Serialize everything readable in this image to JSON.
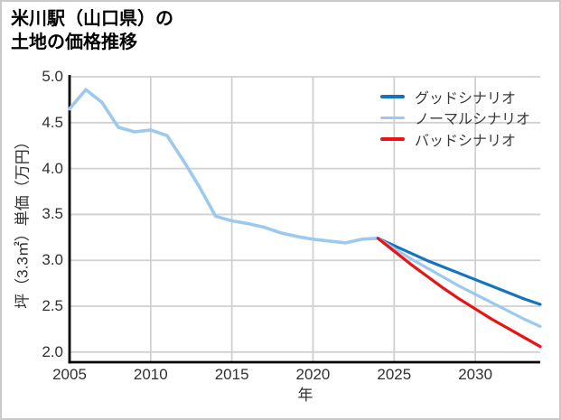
{
  "header": {
    "title_line1": "米川駅（山口県）の",
    "title_line2": "土地の価格推移"
  },
  "chart_data": {
    "type": "line",
    "title": "米川駅（山口県）の土地の価格推移",
    "xlabel": "年",
    "ylabel": "坪（3.3㎡）単価（万円）",
    "xlim": [
      2005,
      2034
    ],
    "ylim": [
      1.89,
      5.01
    ],
    "xticks": [
      2005,
      2010,
      2015,
      2020,
      2025,
      2030
    ],
    "xticklabels": [
      "2005",
      "2010",
      "2015",
      "2020",
      "2025",
      "2030"
    ],
    "yticks": [
      2.0,
      2.5,
      3.0,
      3.5,
      4.0,
      4.5,
      5.0
    ],
    "yticklabels": [
      "2.0",
      "2.5",
      "3.0",
      "3.5",
      "4.0",
      "4.5",
      "5.0"
    ],
    "grid": true,
    "grid_color": "#d0d0d0",
    "legend_position": "upper-right",
    "history": {
      "color": "#9cc9f0",
      "x": [
        2005,
        2006,
        2007,
        2008,
        2009,
        2010,
        2011,
        2012,
        2013,
        2014,
        2015,
        2016,
        2017,
        2018,
        2019,
        2020,
        2021,
        2022,
        2023,
        2024
      ],
      "values": [
        4.65,
        4.86,
        4.72,
        4.45,
        4.4,
        4.42,
        4.36,
        4.09,
        3.8,
        3.48,
        3.43,
        3.4,
        3.36,
        3.3,
        3.26,
        3.23,
        3.21,
        3.19,
        3.23,
        3.24
      ]
    },
    "series": [
      {
        "name": "グッドシナリオ",
        "color": "#1474c0",
        "x": [
          2024,
          2025,
          2026,
          2027,
          2028,
          2029,
          2030,
          2031,
          2032,
          2033,
          2034
        ],
        "values": [
          3.24,
          3.16,
          3.08,
          3.0,
          2.93,
          2.86,
          2.79,
          2.72,
          2.65,
          2.58,
          2.52
        ]
      },
      {
        "name": "ノーマルシナリオ",
        "color": "#9cc9f0",
        "x": [
          2024,
          2025,
          2026,
          2027,
          2028,
          2029,
          2030,
          2031,
          2032,
          2033,
          2034
        ],
        "values": [
          3.24,
          3.13,
          3.02,
          2.92,
          2.82,
          2.72,
          2.63,
          2.54,
          2.45,
          2.36,
          2.28
        ]
      },
      {
        "name": "バッドシナリオ",
        "color": "#ee1111",
        "x": [
          2024,
          2025,
          2026,
          2027,
          2028,
          2029,
          2030,
          2031,
          2032,
          2033,
          2034
        ],
        "values": [
          3.24,
          3.1,
          2.96,
          2.83,
          2.7,
          2.58,
          2.47,
          2.36,
          2.26,
          2.16,
          2.06
        ]
      }
    ]
  }
}
